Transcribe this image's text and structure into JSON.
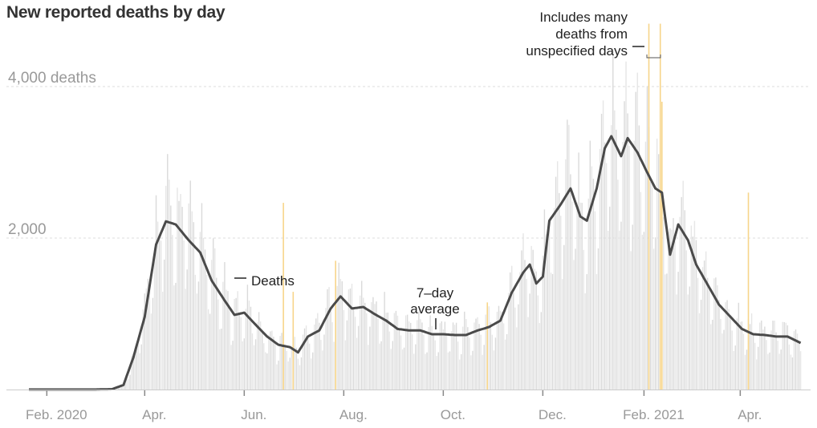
{
  "chart_data": {
    "type": "bar",
    "title": "New reported deaths by day",
    "xlabel": "",
    "ylabel": "deaths",
    "ylim": [
      0,
      4800
    ],
    "grid": true,
    "y_ticks": [
      {
        "value": 2000,
        "label": "2,000"
      },
      {
        "value": 4000,
        "label": "4,000 deaths"
      }
    ],
    "x_ticks": [
      {
        "date": "2020-02-01",
        "label": "Feb. 2020"
      },
      {
        "date": "2020-04-01",
        "label": "Apr."
      },
      {
        "date": "2020-06-01",
        "label": "Jun."
      },
      {
        "date": "2020-08-01",
        "label": "Aug."
      },
      {
        "date": "2020-10-01",
        "label": "Oct."
      },
      {
        "date": "2020-12-01",
        "label": "Dec."
      },
      {
        "date": "2021-02-01",
        "label": "Feb. 2021"
      },
      {
        "date": "2021-04-01",
        "label": "Apr."
      }
    ],
    "date_range": [
      "2020-01-21",
      "2021-05-08"
    ],
    "series": [
      {
        "name": "Deaths",
        "kind": "daily-bars",
        "color": "#dcdcdc",
        "weekday_factors_sun_to_sat": [
          0.62,
          0.72,
          1.15,
          1.28,
          1.22,
          1.1,
          0.9
        ]
      },
      {
        "name": "7-day average",
        "kind": "line",
        "color": "#4a4a4a",
        "points": [
          [
            "2020-01-21",
            0
          ],
          [
            "2020-03-01",
            0
          ],
          [
            "2020-03-12",
            5
          ],
          [
            "2020-03-19",
            60
          ],
          [
            "2020-03-25",
            420
          ],
          [
            "2020-04-01",
            960
          ],
          [
            "2020-04-08",
            1915
          ],
          [
            "2020-04-14",
            2220
          ],
          [
            "2020-04-20",
            2180
          ],
          [
            "2020-04-28",
            1970
          ],
          [
            "2020-05-05",
            1810
          ],
          [
            "2020-05-12",
            1440
          ],
          [
            "2020-05-20",
            1175
          ],
          [
            "2020-05-26",
            985
          ],
          [
            "2020-06-01",
            1015
          ],
          [
            "2020-06-08",
            855
          ],
          [
            "2020-06-15",
            700
          ],
          [
            "2020-06-22",
            590
          ],
          [
            "2020-06-29",
            560
          ],
          [
            "2020-07-04",
            490
          ],
          [
            "2020-07-10",
            700
          ],
          [
            "2020-07-17",
            780
          ],
          [
            "2020-07-24",
            1070
          ],
          [
            "2020-07-30",
            1230
          ],
          [
            "2020-08-06",
            1070
          ],
          [
            "2020-08-13",
            1090
          ],
          [
            "2020-08-20",
            995
          ],
          [
            "2020-08-27",
            910
          ],
          [
            "2020-09-03",
            800
          ],
          [
            "2020-09-10",
            780
          ],
          [
            "2020-09-17",
            780
          ],
          [
            "2020-09-24",
            730
          ],
          [
            "2020-10-01",
            730
          ],
          [
            "2020-10-08",
            720
          ],
          [
            "2020-10-15",
            720
          ],
          [
            "2020-10-22",
            780
          ],
          [
            "2020-10-29",
            825
          ],
          [
            "2020-11-05",
            910
          ],
          [
            "2020-11-12",
            1280
          ],
          [
            "2020-11-19",
            1545
          ],
          [
            "2020-11-23",
            1650
          ],
          [
            "2020-11-27",
            1400
          ],
          [
            "2020-12-01",
            1490
          ],
          [
            "2020-12-05",
            2230
          ],
          [
            "2020-12-12",
            2445
          ],
          [
            "2020-12-18",
            2655
          ],
          [
            "2020-12-24",
            2285
          ],
          [
            "2020-12-28",
            2230
          ],
          [
            "2021-01-03",
            2655
          ],
          [
            "2021-01-08",
            3185
          ],
          [
            "2021-01-12",
            3345
          ],
          [
            "2021-01-18",
            3080
          ],
          [
            "2021-01-22",
            3320
          ],
          [
            "2021-01-28",
            3130
          ],
          [
            "2021-02-03",
            2865
          ],
          [
            "2021-02-08",
            2655
          ],
          [
            "2021-02-12",
            2600
          ],
          [
            "2021-02-17",
            1780
          ],
          [
            "2021-02-22",
            2180
          ],
          [
            "2021-02-28",
            1970
          ],
          [
            "2021-03-05",
            1650
          ],
          [
            "2021-03-12",
            1385
          ],
          [
            "2021-03-19",
            1120
          ],
          [
            "2021-03-26",
            960
          ],
          [
            "2021-04-02",
            800
          ],
          [
            "2021-04-09",
            730
          ],
          [
            "2021-04-16",
            720
          ],
          [
            "2021-04-23",
            700
          ],
          [
            "2021-04-30",
            700
          ],
          [
            "2021-05-08",
            615
          ]
        ]
      }
    ],
    "unspecified_day_spikes": {
      "color": "#f7d58a",
      "points": [
        [
          "2020-06-25",
          2465
        ],
        [
          "2020-07-01",
          1290
        ],
        [
          "2020-07-27",
          1700
        ],
        [
          "2020-10-28",
          1150
        ],
        [
          "2021-02-04",
          4830
        ],
        [
          "2021-02-11",
          4830
        ],
        [
          "2021-02-12",
          3800
        ],
        [
          "2021-04-06",
          2600
        ]
      ]
    },
    "annotations": {
      "deaths_label": "Deaths",
      "avg_label_line1": "7–day",
      "avg_label_line2": "average",
      "spike_note_line1": "Includes many",
      "spike_note_line2": "deaths from",
      "spike_note_line3": "unspecified days"
    }
  }
}
